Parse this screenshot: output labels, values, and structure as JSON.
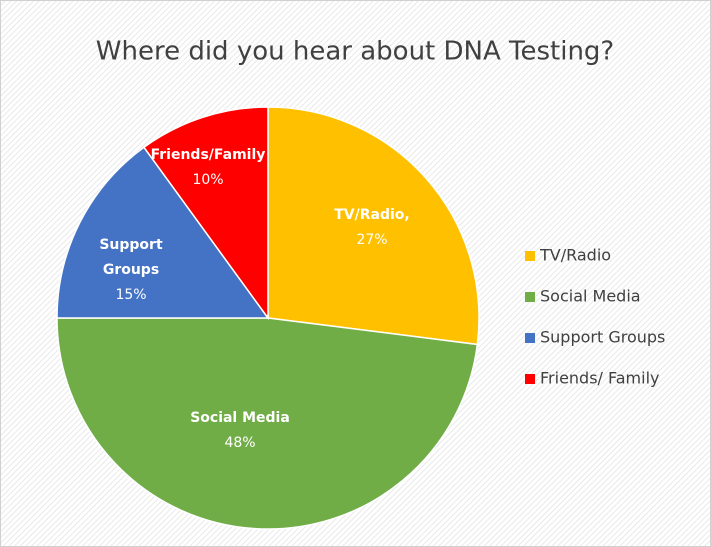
{
  "chart_data": {
    "type": "pie",
    "title": "Where did you hear about DNA Testing?",
    "categories": [
      "TV/Radio",
      "Social Media",
      "Support Groups",
      "Friends/ Family"
    ],
    "slice_labels": [
      [
        "TV/Radio,"
      ],
      [
        "Social Media"
      ],
      [
        "Support",
        "Groups"
      ],
      [
        "Friends/Family"
      ]
    ],
    "values": [
      27,
      48,
      15,
      10
    ],
    "value_labels": [
      "27%",
      "48%",
      "15%",
      "10%"
    ],
    "colors": [
      "#ffc000",
      "#70ad47",
      "#4472c4",
      "#ff0000"
    ],
    "legend": "right"
  }
}
